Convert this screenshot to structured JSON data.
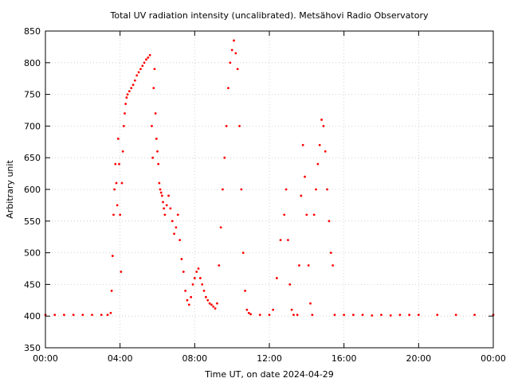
{
  "chart_data": {
    "type": "scatter",
    "title": "Total UV radiation intensity (uncalibrated). Metsähovi Radio Observatory",
    "xlabel": "Time UT, on date 2024-04-29",
    "ylabel": "Arbitrary unit",
    "xlim": [
      "00:00",
      "24:00"
    ],
    "ylim": [
      350,
      850
    ],
    "x_ticks": [
      "00:00",
      "04:00",
      "08:00",
      "12:00",
      "16:00",
      "20:00",
      "00:00"
    ],
    "y_ticks": [
      350,
      400,
      450,
      500,
      550,
      600,
      650,
      700,
      750,
      800,
      850
    ],
    "grid": true,
    "marker_color": "#ff0000",
    "series": [
      {
        "points": [
          [
            "00:00",
            402
          ],
          [
            "00:30",
            402
          ],
          [
            "01:00",
            402
          ],
          [
            "01:30",
            402
          ],
          [
            "02:00",
            402
          ],
          [
            "02:30",
            402
          ],
          [
            "03:00",
            402
          ],
          [
            "03:20",
            402
          ],
          [
            "03:30",
            405
          ],
          [
            "03:33",
            440
          ],
          [
            "03:36",
            495
          ],
          [
            "03:39",
            560
          ],
          [
            "03:42",
            600
          ],
          [
            "03:45",
            640
          ],
          [
            "03:48",
            610
          ],
          [
            "03:51",
            575
          ],
          [
            "03:54",
            680
          ],
          [
            "03:57",
            640
          ],
          [
            "04:00",
            560
          ],
          [
            "04:03",
            470
          ],
          [
            "04:06",
            610
          ],
          [
            "04:09",
            660
          ],
          [
            "04:12",
            700
          ],
          [
            "04:15",
            720
          ],
          [
            "04:18",
            735
          ],
          [
            "04:21",
            745
          ],
          [
            "04:24",
            750
          ],
          [
            "04:30",
            755
          ],
          [
            "04:36",
            760
          ],
          [
            "04:42",
            765
          ],
          [
            "04:48",
            772
          ],
          [
            "04:54",
            780
          ],
          [
            "05:00",
            785
          ],
          [
            "05:06",
            790
          ],
          [
            "05:12",
            795
          ],
          [
            "05:18",
            800
          ],
          [
            "05:24",
            805
          ],
          [
            "05:30",
            808
          ],
          [
            "05:36",
            812
          ],
          [
            "05:42",
            700
          ],
          [
            "05:45",
            650
          ],
          [
            "05:48",
            760
          ],
          [
            "05:51",
            790
          ],
          [
            "05:54",
            720
          ],
          [
            "05:57",
            680
          ],
          [
            "06:00",
            660
          ],
          [
            "06:03",
            640
          ],
          [
            "06:06",
            610
          ],
          [
            "06:09",
            600
          ],
          [
            "06:12",
            595
          ],
          [
            "06:15",
            590
          ],
          [
            "06:18",
            580
          ],
          [
            "06:21",
            570
          ],
          [
            "06:24",
            560
          ],
          [
            "06:30",
            575
          ],
          [
            "06:36",
            590
          ],
          [
            "06:42",
            570
          ],
          [
            "06:48",
            550
          ],
          [
            "06:54",
            530
          ],
          [
            "07:00",
            540
          ],
          [
            "07:06",
            560
          ],
          [
            "07:12",
            520
          ],
          [
            "07:18",
            490
          ],
          [
            "07:24",
            470
          ],
          [
            "07:30",
            440
          ],
          [
            "07:36",
            425
          ],
          [
            "07:42",
            418
          ],
          [
            "07:48",
            430
          ],
          [
            "07:54",
            450
          ],
          [
            "08:00",
            460
          ],
          [
            "08:06",
            470
          ],
          [
            "08:12",
            475
          ],
          [
            "08:18",
            460
          ],
          [
            "08:24",
            450
          ],
          [
            "08:30",
            440
          ],
          [
            "08:36",
            430
          ],
          [
            "08:42",
            425
          ],
          [
            "08:48",
            420
          ],
          [
            "08:54",
            418
          ],
          [
            "09:00",
            415
          ],
          [
            "09:06",
            412
          ],
          [
            "09:12",
            420
          ],
          [
            "09:18",
            480
          ],
          [
            "09:24",
            540
          ],
          [
            "09:30",
            600
          ],
          [
            "09:36",
            650
          ],
          [
            "09:42",
            700
          ],
          [
            "09:48",
            760
          ],
          [
            "09:54",
            800
          ],
          [
            "10:00",
            820
          ],
          [
            "10:06",
            835
          ],
          [
            "10:12",
            815
          ],
          [
            "10:18",
            790
          ],
          [
            "10:24",
            700
          ],
          [
            "10:30",
            600
          ],
          [
            "10:36",
            500
          ],
          [
            "10:42",
            440
          ],
          [
            "10:48",
            410
          ],
          [
            "10:54",
            405
          ],
          [
            "11:00",
            403
          ],
          [
            "11:30",
            402
          ],
          [
            "12:00",
            402
          ],
          [
            "12:12",
            410
          ],
          [
            "12:24",
            460
          ],
          [
            "12:36",
            520
          ],
          [
            "12:48",
            560
          ],
          [
            "12:54",
            600
          ],
          [
            "13:00",
            520
          ],
          [
            "13:06",
            450
          ],
          [
            "13:12",
            410
          ],
          [
            "13:18",
            402
          ],
          [
            "13:30",
            402
          ],
          [
            "13:36",
            480
          ],
          [
            "13:42",
            590
          ],
          [
            "13:48",
            670
          ],
          [
            "13:54",
            620
          ],
          [
            "14:00",
            560
          ],
          [
            "14:06",
            480
          ],
          [
            "14:12",
            420
          ],
          [
            "14:18",
            402
          ],
          [
            "14:24",
            560
          ],
          [
            "14:30",
            600
          ],
          [
            "14:36",
            640
          ],
          [
            "14:42",
            670
          ],
          [
            "14:48",
            710
          ],
          [
            "14:54",
            700
          ],
          [
            "15:00",
            660
          ],
          [
            "15:06",
            600
          ],
          [
            "15:12",
            550
          ],
          [
            "15:18",
            500
          ],
          [
            "15:24",
            480
          ],
          [
            "15:30",
            402
          ],
          [
            "16:00",
            402
          ],
          [
            "16:30",
            402
          ],
          [
            "17:00",
            402
          ],
          [
            "17:30",
            401
          ],
          [
            "18:00",
            402
          ],
          [
            "18:30",
            401
          ],
          [
            "19:00",
            402
          ],
          [
            "19:30",
            402
          ],
          [
            "20:00",
            402
          ],
          [
            "21:00",
            402
          ],
          [
            "22:00",
            402
          ],
          [
            "23:00",
            402
          ],
          [
            "24:00",
            402
          ]
        ]
      }
    ]
  }
}
